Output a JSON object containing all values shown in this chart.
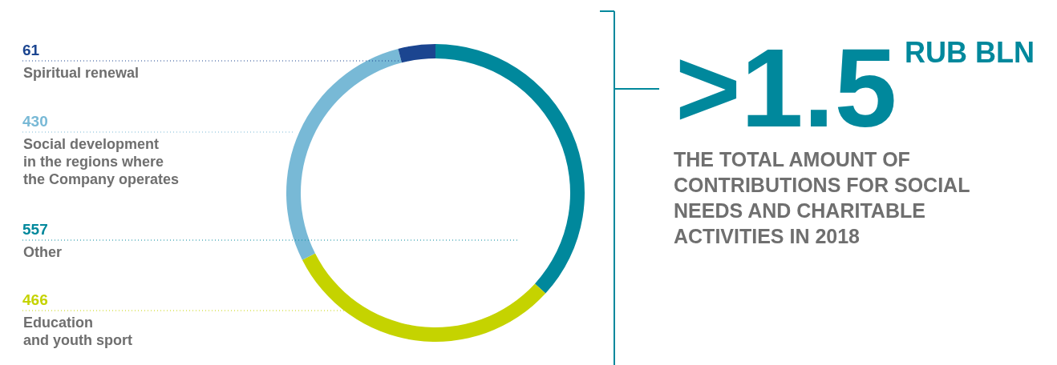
{
  "chart_data": {
    "type": "donut",
    "categories": [
      "Other",
      "Education\nand youth sport",
      "Social development\nin the regions where\nthe Company operates",
      "Spiritual renewal"
    ],
    "values": [
      557,
      466,
      430,
      61
    ],
    "colors": [
      "#00889c",
      "#c5d300",
      "#78b9d6",
      "#1b4590"
    ],
    "data_labels": true,
    "annotations": [
      ">1.5",
      "RUB BLN",
      "THE TOTAL AMOUNT OF\nCONTRIBUTIONS FOR SOCIAL\nNEEDS AND CHARITABLE\nACTIVITIES IN 2018"
    ]
  }
}
